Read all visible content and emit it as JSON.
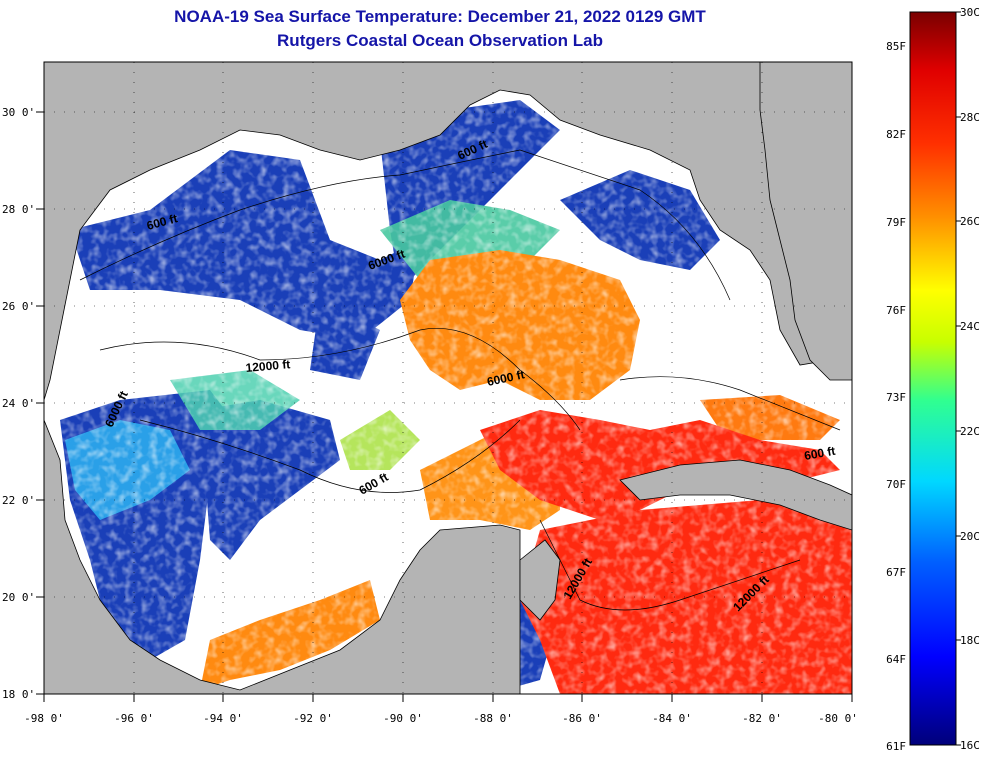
{
  "header": {
    "title": "NOAA-19 Sea Surface Temperature:  December 21, 2022 0129 GMT",
    "subtitle": "Rutgers Coastal Ocean Observation Lab"
  },
  "map": {
    "lat_labels": [
      "30 0'",
      "28 0'",
      "26 0'",
      "24 0'",
      "22 0'",
      "20 0'",
      "18 0'"
    ],
    "lon_labels": [
      "-98 0'",
      "-96 0'",
      "-94 0'",
      "-92 0'",
      "-90 0'",
      "-88 0'",
      "-86 0'",
      "-84 0'",
      "-82 0'",
      "-80 0'"
    ],
    "lat_range": [
      18,
      31
    ],
    "lon_range": [
      -98,
      -80
    ],
    "contour_labels": [
      "600 ft",
      "6000 ft",
      "600 ft",
      "12000 ft",
      "6000 ft",
      "6000 ft",
      "600 ft",
      "12000 ft",
      "12000 ft",
      "600 ft"
    ],
    "colors": {
      "land": "#b4b4b4",
      "cloud": "#ffffff",
      "cold": "#1a3fb8",
      "warm": "#ff8a10",
      "hot": "#ff2a10"
    }
  },
  "colorbar": {
    "celsius_labels": [
      "30C",
      "28C",
      "26C",
      "24C",
      "22C",
      "20C",
      "18C",
      "16C"
    ],
    "fahrenheit_labels": [
      "85F",
      "82F",
      "79F",
      "76F",
      "73F",
      "70F",
      "67F",
      "64F",
      "61F"
    ],
    "range_c": [
      16,
      30
    ]
  }
}
